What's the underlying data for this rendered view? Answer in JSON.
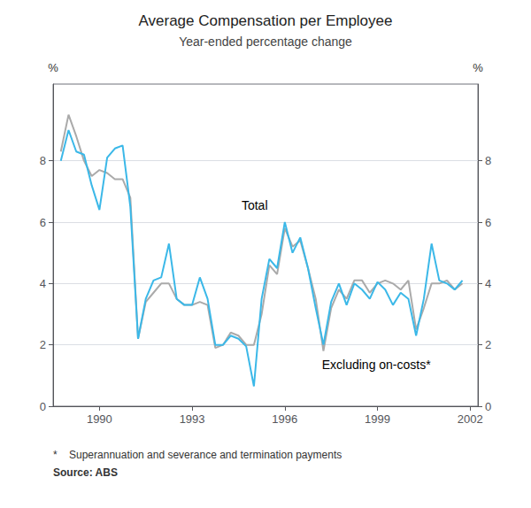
{
  "chart_data": {
    "type": "line",
    "title": "Average Compensation per Employee",
    "subtitle": "Year-ended percentage change",
    "ylabel": "%",
    "y2label": "%",
    "footnote": "*    Superannuation and severance and termination payments",
    "source": "Source: ABS",
    "xlim": [
      1988.5,
      2002.25
    ],
    "xticks": [
      1990,
      1993,
      1996,
      1999,
      2002
    ],
    "ylim": [
      0,
      10.5
    ],
    "yticks": [
      0,
      2,
      4,
      6,
      8
    ],
    "y2lim": [
      0,
      10.5
    ],
    "y2ticks": [
      0,
      2,
      4,
      6,
      8
    ],
    "grid": true,
    "x": [
      1988.75,
      1989.0,
      1989.25,
      1989.5,
      1989.75,
      1990.0,
      1990.25,
      1990.5,
      1990.75,
      1991.0,
      1991.25,
      1991.5,
      1991.75,
      1992.0,
      1992.25,
      1992.5,
      1992.75,
      1993.0,
      1993.25,
      1993.5,
      1993.75,
      1994.0,
      1994.25,
      1994.5,
      1994.75,
      1995.0,
      1995.25,
      1995.5,
      1995.75,
      1996.0,
      1996.25,
      1996.5,
      1996.75,
      1997.0,
      1997.25,
      1997.5,
      1997.75,
      1998.0,
      1998.25,
      1998.5,
      1998.75,
      1999.0,
      1999.25,
      1999.5,
      1999.75,
      2000.0,
      2000.25,
      2000.5,
      2000.75,
      2001.0,
      2001.25,
      2001.5,
      2001.75
    ],
    "series": [
      {
        "color": "#AAAAAA",
        "values": [
          8.3,
          9.5,
          8.8,
          8.0,
          7.5,
          7.7,
          7.6,
          7.4,
          7.4,
          6.8,
          2.2,
          3.4,
          3.7,
          4.0,
          4.0,
          3.5,
          3.3,
          3.3,
          3.4,
          3.3,
          1.9,
          2.0,
          2.4,
          2.3,
          2.0,
          2.0,
          3.0,
          4.6,
          4.3,
          5.8,
          5.2,
          5.4,
          4.5,
          3.5,
          1.8,
          3.2,
          3.8,
          3.5,
          4.1,
          4.1,
          3.7,
          4.0,
          4.1,
          4.0,
          3.8,
          4.1,
          2.5,
          3.2,
          4.0,
          4.0,
          4.1,
          3.8,
          4.0
        ]
      },
      {
        "color": "#3BB8E8",
        "values": [
          8.0,
          9.0,
          8.3,
          8.2,
          7.2,
          6.4,
          8.1,
          8.4,
          8.5,
          6.5,
          2.2,
          3.5,
          4.1,
          4.2,
          5.3,
          3.5,
          3.3,
          3.3,
          4.2,
          3.5,
          2.0,
          2.0,
          2.3,
          2.2,
          1.95,
          0.65,
          3.5,
          4.8,
          4.5,
          6.0,
          5.0,
          5.5,
          4.5,
          3.2,
          2.0,
          3.4,
          4.0,
          3.3,
          4.0,
          3.8,
          3.5,
          4.05,
          3.8,
          3.3,
          3.7,
          3.5,
          2.3,
          3.5,
          5.3,
          4.1,
          4.0,
          3.8,
          4.1
        ]
      }
    ],
    "annotations": [
      {
        "text": "Total",
        "x": 1994.6,
        "y": 6.35
      },
      {
        "text": "Excluding on-costs*",
        "x": 1997.2,
        "y": 1.55
      }
    ]
  }
}
